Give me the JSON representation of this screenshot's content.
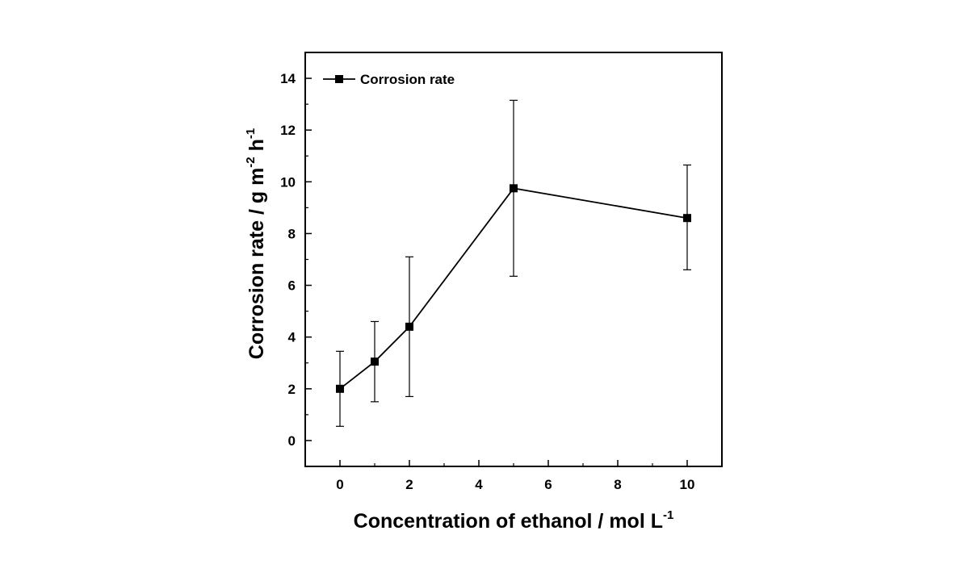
{
  "chart_data": {
    "type": "line",
    "xlabel": "Concentration of ethanol / mol L",
    "xlabel_sup": "-1",
    "ylabel": "Corrosion rate / g m",
    "ylabel_sup1": "-2",
    "ylabel_mid": " h",
    "ylabel_sup2": "-1",
    "xlim": [
      -1,
      11
    ],
    "ylim": [
      -1,
      15
    ],
    "x_ticks": [
      0,
      2,
      4,
      6,
      8,
      10
    ],
    "y_ticks": [
      0,
      2,
      4,
      6,
      8,
      10,
      12,
      14
    ],
    "x_tick_labels": [
      "0",
      "2",
      "4",
      "6",
      "8",
      "10"
    ],
    "y_tick_labels": [
      "0",
      "2",
      "4",
      "6",
      "8",
      "10",
      "12",
      "14"
    ],
    "legend": {
      "position": "top-left",
      "entries": [
        "Corrosion rate"
      ]
    },
    "grid": false,
    "series": [
      {
        "name": "Corrosion rate",
        "marker": "square",
        "color": "#000000",
        "x": [
          0,
          1,
          2,
          5,
          10
        ],
        "y": [
          2.0,
          3.05,
          4.4,
          9.75,
          8.6
        ],
        "err_low": [
          0.55,
          1.5,
          1.7,
          6.35,
          6.6
        ],
        "err_high": [
          3.45,
          4.6,
          7.1,
          13.15,
          10.65
        ]
      }
    ]
  }
}
